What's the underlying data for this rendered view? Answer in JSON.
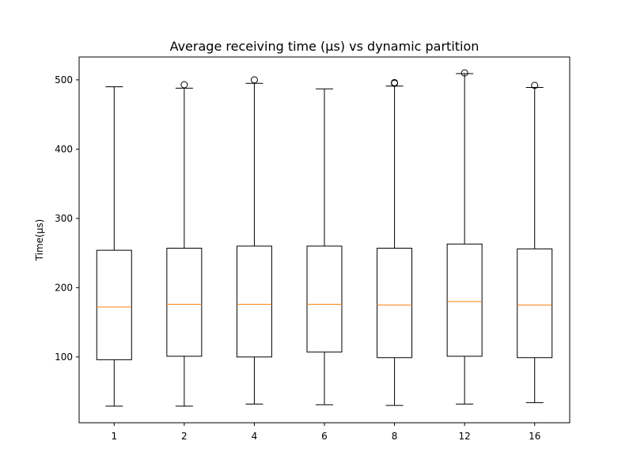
{
  "chart_data": {
    "type": "box",
    "title": "Average receiving time (µs) vs dynamic partition",
    "xlabel": "",
    "ylabel": "Time(µs)",
    "categories": [
      "1",
      "2",
      "4",
      "6",
      "8",
      "12",
      "16"
    ],
    "ylim": [
      5,
      533
    ],
    "yticks": [
      100,
      200,
      300,
      400,
      500
    ],
    "grid": false,
    "colors": {
      "box": "#000000",
      "median": "#ff7f0e",
      "frame": "#000000"
    },
    "boxes": [
      {
        "category": "1",
        "whisker_low": 29,
        "q1": 96,
        "median": 172,
        "q3": 254,
        "whisker_high": 490,
        "outliers": []
      },
      {
        "category": "2",
        "whisker_low": 29,
        "q1": 101,
        "median": 176,
        "q3": 257,
        "whisker_high": 488,
        "outliers": [
          493
        ]
      },
      {
        "category": "4",
        "whisker_low": 32,
        "q1": 100,
        "median": 176,
        "q3": 260,
        "whisker_high": 495,
        "outliers": [
          500
        ]
      },
      {
        "category": "6",
        "whisker_low": 31,
        "q1": 107,
        "median": 176,
        "q3": 260,
        "whisker_high": 487,
        "outliers": []
      },
      {
        "category": "8",
        "whisker_low": 30,
        "q1": 99,
        "median": 175,
        "q3": 257,
        "whisker_high": 491,
        "outliers": [
          496,
          495
        ]
      },
      {
        "category": "12",
        "whisker_low": 32,
        "q1": 101,
        "median": 180,
        "q3": 263,
        "whisker_high": 509,
        "outliers": [
          510
        ]
      },
      {
        "category": "16",
        "whisker_low": 34,
        "q1": 99,
        "median": 175,
        "q3": 256,
        "whisker_high": 489,
        "outliers": [
          492
        ]
      }
    ]
  }
}
